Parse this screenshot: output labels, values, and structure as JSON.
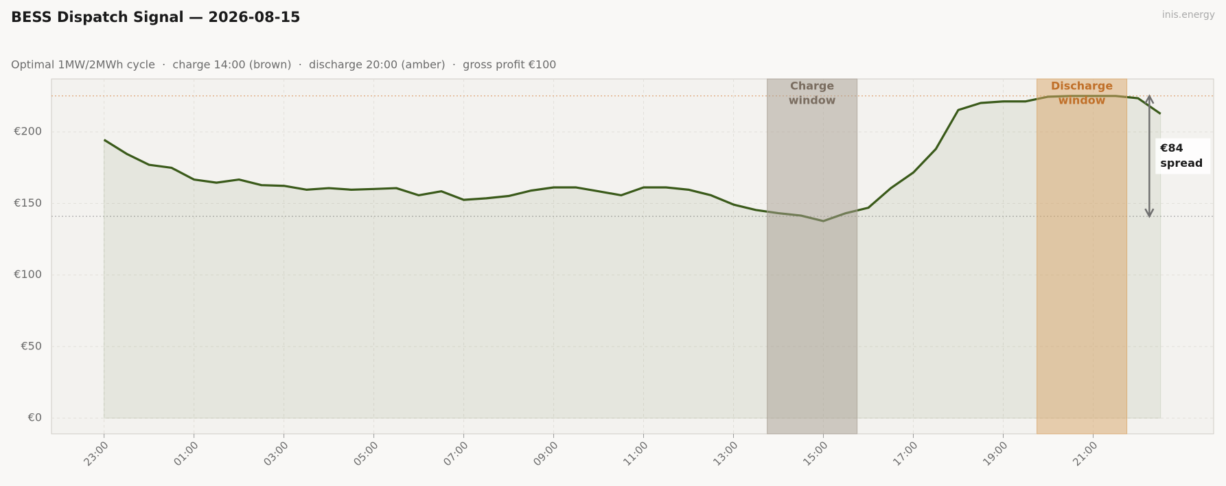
{
  "chart_data": {
    "type": "line",
    "title": "BESS Dispatch Signal — 2026-08-15",
    "subtitle": "Optimal 1MW/2MWh cycle  ·  charge 14:00 (brown)  ·  discharge 20:00 (amber)  ·  gross profit €100",
    "watermark": "inis.energy",
    "x": [
      0,
      0.5,
      1,
      1.5,
      2,
      2.5,
      3,
      3.5,
      4,
      4.5,
      5,
      5.5,
      6,
      6.5,
      7,
      7.5,
      8,
      8.5,
      9,
      9.5,
      10,
      10.5,
      11,
      11.5,
      12,
      12.5,
      13,
      13.5,
      14,
      14.5,
      15,
      15.5,
      16,
      16.5,
      17,
      17.5,
      18,
      18.5,
      19,
      19.5,
      20,
      20.5,
      21,
      21.5,
      22,
      22.5,
      23,
      23.5
    ],
    "series": [
      {
        "color": "#3a5a1a",
        "values": [
          194.5,
          184.7,
          177,
          174.9,
          166.7,
          164.5,
          166.7,
          162.8,
          162.3,
          159.6,
          160.7,
          159.6,
          160.1,
          160.7,
          155.7,
          158.5,
          152.5,
          153.6,
          155.2,
          159,
          161.2,
          161.2,
          158.5,
          155.7,
          161.2,
          161.2,
          159.6,
          155.7,
          149.2,
          145.4,
          143.2,
          141.5,
          137.7,
          143.2,
          147,
          160.7,
          171.6,
          188,
          215.3,
          220.2,
          221.3,
          221.3,
          224.6,
          225.1,
          225.1,
          225.1,
          223.5,
          212.6
        ]
      }
    ],
    "xlim": [
      -1.17,
      24.68
    ],
    "xticks": [
      {
        "value": 0,
        "label": "23:00"
      },
      {
        "value": 2,
        "label": "01:00"
      },
      {
        "value": 4,
        "label": "03:00"
      },
      {
        "value": 6,
        "label": "05:00"
      },
      {
        "value": 8,
        "label": "07:00"
      },
      {
        "value": 10,
        "label": "09:00"
      },
      {
        "value": 12,
        "label": "11:00"
      },
      {
        "value": 14,
        "label": "13:00"
      },
      {
        "value": 16,
        "label": "15:00"
      },
      {
        "value": 18,
        "label": "17:00"
      },
      {
        "value": 20,
        "label": "19:00"
      },
      {
        "value": 22,
        "label": "21:00"
      }
    ],
    "ylim": [
      -11,
      237
    ],
    "yticks": [
      {
        "value": 0,
        "label": "€0"
      },
      {
        "value": 50,
        "label": "€50"
      },
      {
        "value": 100,
        "label": "€100"
      },
      {
        "value": 150,
        "label": "€150"
      },
      {
        "value": 200,
        "label": "€200"
      }
    ],
    "grid": true,
    "bands": [
      {
        "start": 14.75,
        "end": 16.75,
        "color": "#a89d92",
        "text_color": "#7a6d60",
        "label_lines": [
          "Charge",
          "window"
        ]
      },
      {
        "start": 20.75,
        "end": 22.75,
        "color": "#d9a66a",
        "text_color": "#c0702a",
        "label_lines": [
          "Discharge",
          "window"
        ]
      }
    ],
    "hlines": [
      {
        "value": 225.1,
        "color": "#d9925a"
      },
      {
        "value": 141,
        "color": "#999999"
      }
    ],
    "spread": {
      "x": 23.25,
      "from": 141,
      "to": 225.1,
      "label_lines": [
        "€84",
        "spread"
      ]
    }
  }
}
